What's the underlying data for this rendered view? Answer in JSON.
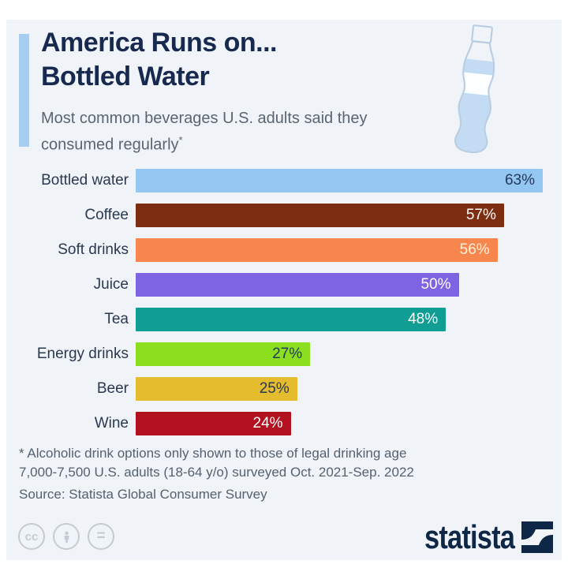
{
  "page": {
    "background": "#ffffff",
    "canvas_background": "#f0f4f8"
  },
  "header": {
    "title_line1": "America Runs on...",
    "title_line2": "Bottled Water",
    "subtitle": "Most common beverages U.S. adults said they consumed regularly",
    "subtitle_footnote_marker": "*",
    "accent_color": "#a9cdf1",
    "illustration": "water-bottle-icon"
  },
  "chart_data": {
    "type": "bar",
    "orientation": "horizontal",
    "title": "Most common beverages U.S. adults said they consumed regularly",
    "unit": "%",
    "categories": [
      "Bottled water",
      "Coffee",
      "Soft drinks",
      "Juice",
      "Tea",
      "Energy drinks",
      "Beer",
      "Wine"
    ],
    "values": [
      63,
      57,
      56,
      50,
      48,
      27,
      25,
      24
    ],
    "value_labels": [
      "63%",
      "57%",
      "56%",
      "50%",
      "48%",
      "27%",
      "25%",
      "24%"
    ],
    "bar_colors": [
      "#93c6f0",
      "#7c2d12",
      "#f6864d",
      "#7e63e2",
      "#109e94",
      "#8bdf1f",
      "#e4bc2e",
      "#b2121f"
    ],
    "value_label_colors": [
      "#24395c",
      "#ffffff",
      "#fdf0dd",
      "#ffffff",
      "#ffffff",
      "#24395c",
      "#24395c",
      "#ffffff"
    ],
    "xlim": [
      0,
      63
    ],
    "value_label_position": "inside-end",
    "grid": false,
    "legend": false
  },
  "footer": {
    "footnote_line1": "* Alcoholic drink options only shown to those of legal drinking age",
    "footnote_line2": "7,000-7,500 U.S. adults (18-64 y/o) surveyed Oct. 2021-Sep. 2022",
    "source": "Source: Statista Global Consumer Survey"
  },
  "branding": {
    "logo_text": "statista",
    "logo_navy": "#0f2747",
    "license_cc_glyph": "cc",
    "license_nd_glyph": "=",
    "license_icon_color": "#c5cbd4"
  }
}
